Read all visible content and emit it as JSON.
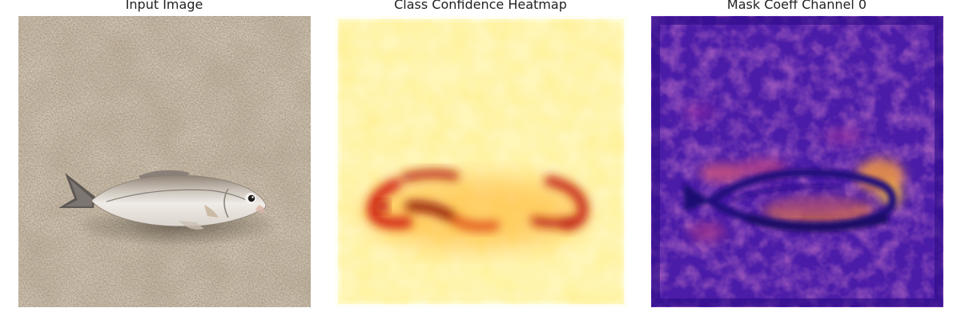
{
  "panels": [
    {
      "title": "Input Image",
      "kind": "photo",
      "subject": "fish",
      "colors": {
        "background": "#9a8a74",
        "speckle_dark": "#5f5344",
        "speckle_light": "#cfc6b6",
        "fish_body": "#e6e2dc",
        "fish_back": "#9c8e80",
        "fin": "#6f6864"
      }
    },
    {
      "title": "Class Confidence Heatmap",
      "kind": "heatmap",
      "colormap": "hot (reversed, white-yellow-red)",
      "colors": {
        "background": "#fffbd0",
        "mid": "#ffe25a",
        "high": "#d42a10",
        "peak": "#8a0d05"
      }
    },
    {
      "title": "Mask Coeff Channel 0",
      "kind": "heatmap",
      "colormap": "plasma",
      "colors": {
        "background": "#4a1ca6",
        "low": "#2a0f8a",
        "mid": "#a83a9c",
        "high": "#f5a43a"
      }
    }
  ]
}
